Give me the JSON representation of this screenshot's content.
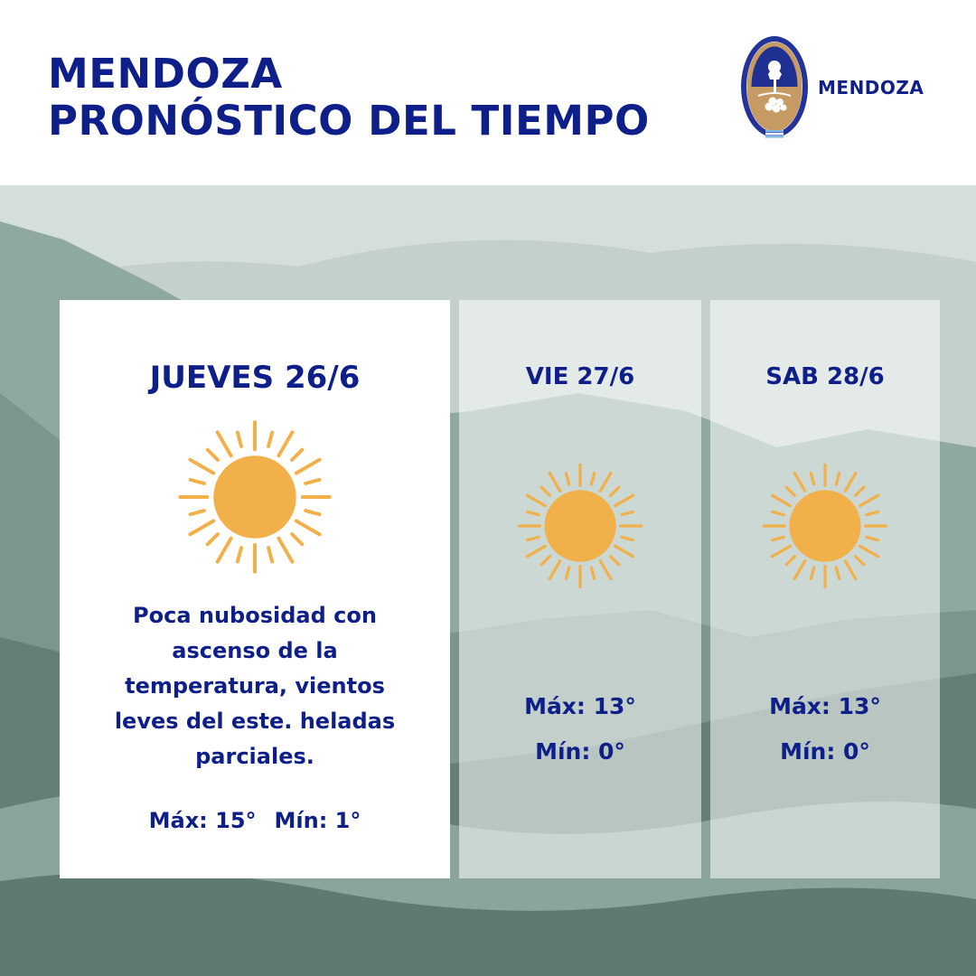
{
  "header": {
    "title_line1": "MENDOZA",
    "title_line2": "PRONÓSTICO DEL TIEMPO",
    "logo_text": "MENDOZA"
  },
  "colors": {
    "brand_blue": "#0f1f8a",
    "sun": "#f2b04a",
    "background_sage": "#7f9b93"
  },
  "forecast": {
    "today": {
      "day": "JUEVES 26/6",
      "icon": "sun-icon",
      "description": "Poca nubosidad con ascenso de la temperatura, vientos leves del este. heladas parciales.",
      "max": "Máx: 15°",
      "min": "Mín: 1°"
    },
    "days": [
      {
        "day": "VIE 27/6",
        "icon": "sun-icon",
        "max": "Máx: 13°",
        "min": "Mín: 0°"
      },
      {
        "day": "SAB 28/6",
        "icon": "sun-icon",
        "max": "Máx: 13°",
        "min": "Mín: 0°"
      }
    ]
  }
}
